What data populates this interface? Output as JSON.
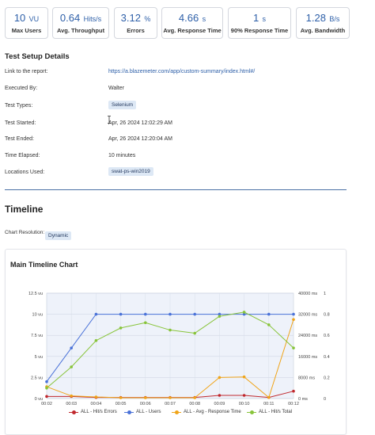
{
  "kpis": [
    {
      "value": "10",
      "unit": "VU",
      "label": "Max Users"
    },
    {
      "value": "0.64",
      "unit": "Hits/s",
      "label": "Avg. Throughput"
    },
    {
      "value": "3.12",
      "unit": "%",
      "label": "Errors"
    },
    {
      "value": "4.66",
      "unit": "s",
      "label": "Avg. Response Time"
    },
    {
      "value": "1",
      "unit": "s",
      "label": "90% Response Time"
    },
    {
      "value": "1.28",
      "unit": "B/s",
      "label": "Avg. Bandwidth"
    }
  ],
  "setup": {
    "title": "Test Setup Details",
    "link_label": "Link to the report:",
    "link_value": "https://a.blazemeter.com/app/custom-summary/index.html#/",
    "executed_label": "Executed By:",
    "executed_value": "Walter",
    "types_label": "Test Types:",
    "types_value": "Selenium",
    "started_label": "Test Started:",
    "started_value": "Apr, 26 2024 12:02:29 AM",
    "ended_label": "Test Ended:",
    "ended_value": "Apr, 26 2024 12:20:04 AM",
    "elapsed_label": "Time Elapsed:",
    "elapsed_value": "10 minutes",
    "locations_label": "Locations Used:",
    "locations_value": "swat-ps-win2019"
  },
  "timeline": {
    "title": "Timeline",
    "resolution_label": "Chart Resolution:",
    "resolution_value": "Dynamic"
  },
  "chart_data": {
    "type": "line",
    "title": "Main Timeline Chart",
    "x": [
      "00:02",
      "00:03",
      "00:04",
      "00:05",
      "00:06",
      "00:07",
      "00:08",
      "00:09",
      "00:10",
      "00:11",
      "00:12"
    ],
    "y_left_ticks": [
      "0 vu",
      "2.5 vu",
      "5 vu",
      "7.5 vu",
      "10 vu",
      "12.5 vu"
    ],
    "y_left_range": [
      0,
      12.5
    ],
    "y_mid_ticks": [
      "0 ms",
      "8000 ms",
      "16000 ms",
      "24000 ms",
      "32000 ms",
      "40000 ms"
    ],
    "y_mid_range": [
      0,
      40000
    ],
    "y_right_ticks": [
      "0",
      "0.2",
      "0.4",
      "0.6",
      "0.8",
      "1"
    ],
    "y_right_range": [
      0,
      1
    ],
    "series": [
      {
        "name": "ALL - Hit/s Errors",
        "color": "#c0282d",
        "axis": "right",
        "values": [
          0.02,
          0.02,
          0.01,
          0.01,
          0.01,
          0.01,
          0.01,
          0.03,
          0.03,
          0.01,
          0.07
        ]
      },
      {
        "name": "ALL - Users",
        "color": "#4a72d8",
        "axis": "left",
        "values": [
          2,
          6,
          10,
          10,
          10,
          10,
          10,
          10,
          10,
          10,
          10
        ]
      },
      {
        "name": "ALL - Avg - Response Time",
        "color": "#f0a418",
        "axis": "mid",
        "values": [
          4500,
          1000,
          600,
          300,
          300,
          300,
          300,
          8000,
          8200,
          400,
          30000
        ]
      },
      {
        "name": "ALL - Hit/s Total",
        "color": "#88c43a",
        "axis": "right",
        "values": [
          0.1,
          0.3,
          0.55,
          0.67,
          0.72,
          0.65,
          0.62,
          0.78,
          0.82,
          0.7,
          0.48
        ]
      }
    ]
  }
}
